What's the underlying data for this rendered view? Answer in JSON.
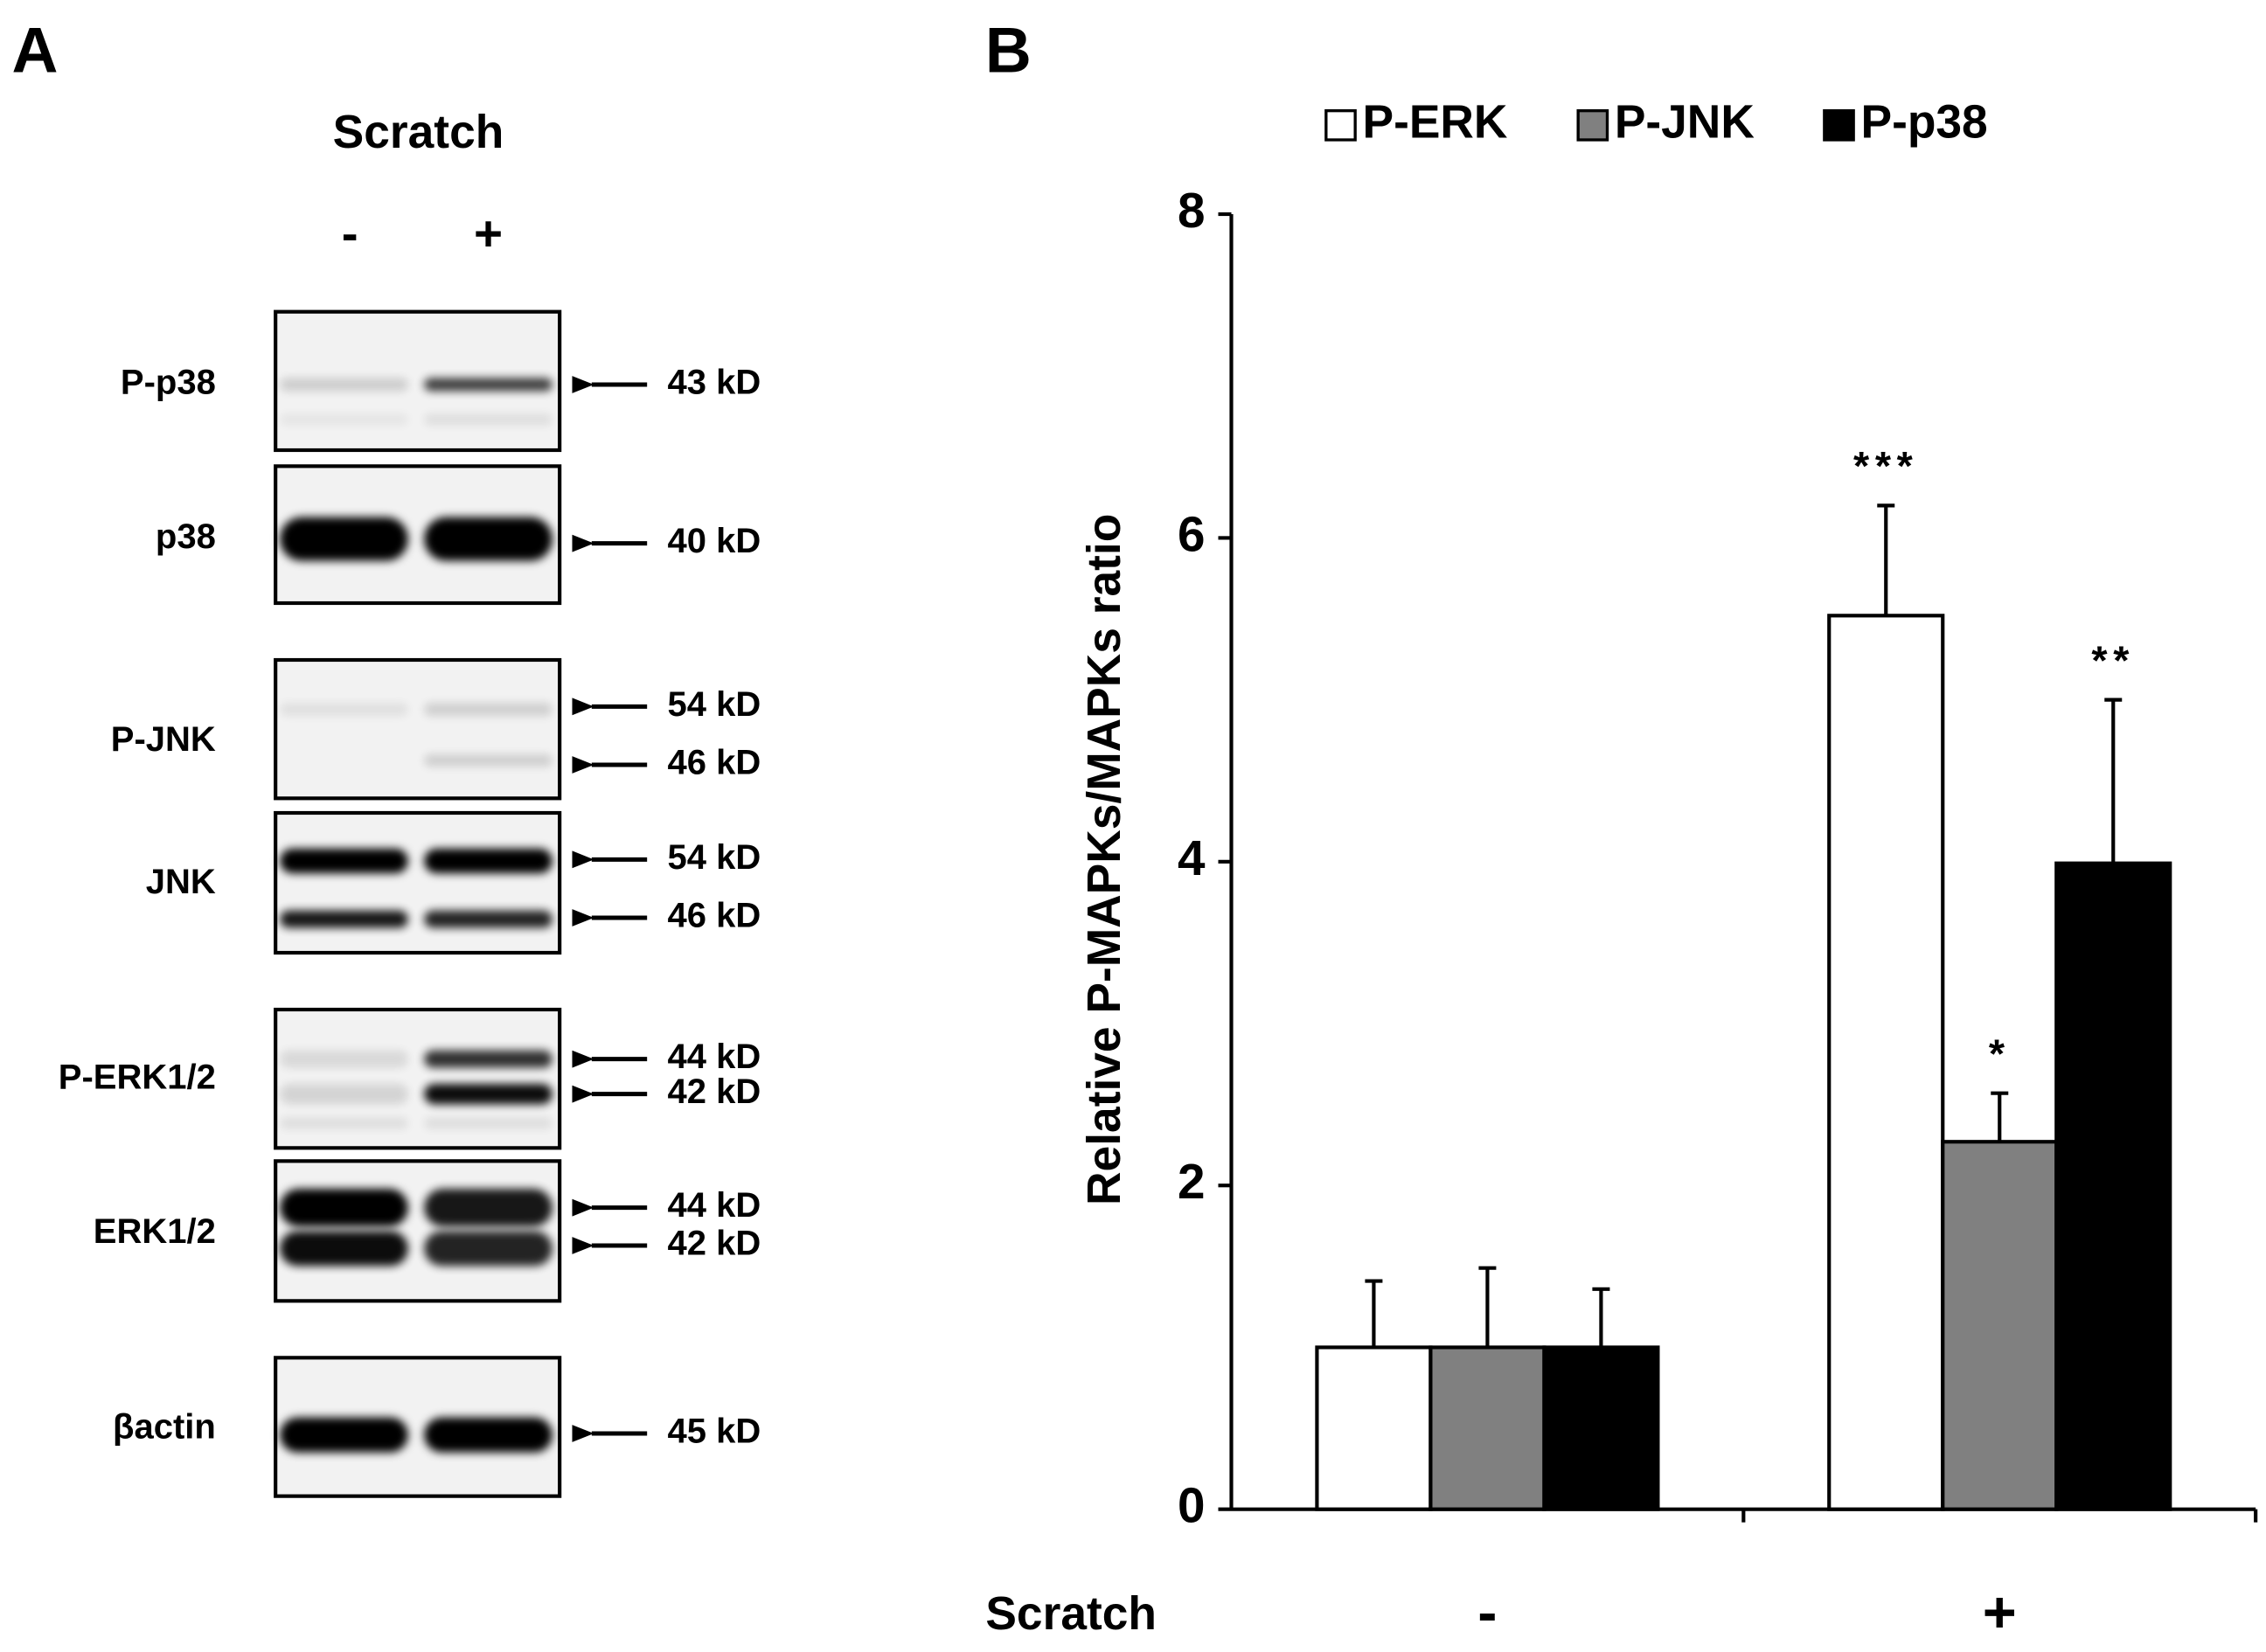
{
  "panel_labels": [
    "A",
    "B"
  ],
  "panel_a": {
    "condition": "Scratch",
    "lanes": [
      "-",
      "+"
    ],
    "blots": [
      {
        "name": "P-p38",
        "markers": [
          "43 kD"
        ]
      },
      {
        "name": "p38",
        "markers": [
          "40 kD"
        ]
      },
      {
        "name": "P-JNK",
        "markers": [
          "54 kD",
          "46 kD"
        ]
      },
      {
        "name": "JNK",
        "markers": [
          "54 kD",
          "46 kD"
        ]
      },
      {
        "name": "P-ERK1/2",
        "markers": [
          "44 kD",
          "42 kD"
        ]
      },
      {
        "name": "ERK1/2",
        "markers": [
          "44 kD",
          "42 kD"
        ]
      },
      {
        "name": "βactin",
        "markers": [
          "45 kD"
        ]
      }
    ]
  },
  "chart_data": {
    "type": "bar",
    "y_label": "Relative P-MAPKs/MAPKs ratio",
    "x_label": "Scratch",
    "categories": [
      "-",
      "+"
    ],
    "series": [
      {
        "name": "P-ERK",
        "color": "#ffffff",
        "values": [
          1.0,
          5.52
        ],
        "errors": [
          0.41,
          0.68
        ],
        "annotations": [
          null,
          "***"
        ]
      },
      {
        "name": "P-JNK",
        "color": "#808080",
        "values": [
          1.0,
          2.27
        ],
        "errors": [
          0.49,
          0.3
        ],
        "annotations": [
          null,
          "*"
        ]
      },
      {
        "name": "P-p38",
        "color": "#000000",
        "values": [
          1.0,
          3.99
        ],
        "errors": [
          0.36,
          1.01
        ],
        "annotations": [
          null,
          "**"
        ]
      }
    ],
    "ylim": [
      0,
      8
    ],
    "yticks": [
      0,
      2,
      4,
      6,
      8
    ],
    "legend": "top"
  }
}
